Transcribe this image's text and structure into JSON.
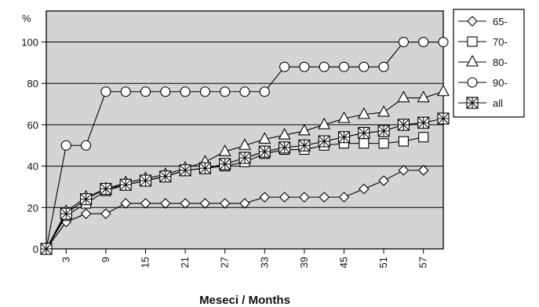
{
  "chart_data": {
    "type": "line",
    "xlabel": "Meseci / Months",
    "ylabel": "%",
    "x": [
      0,
      1,
      2,
      3,
      4,
      5,
      6,
      7,
      8,
      9,
      10,
      11,
      12,
      13,
      14,
      15,
      16,
      17,
      18,
      19,
      20,
      21,
      22,
      23,
      24,
      25,
      26,
      27,
      28,
      29,
      30,
      31,
      32,
      33,
      34,
      35,
      36,
      37,
      38,
      39,
      40,
      41,
      42,
      43,
      44,
      45,
      46,
      47,
      48,
      49,
      50,
      51,
      52,
      53,
      54,
      55,
      56,
      57
    ],
    "xticks": [
      3,
      9,
      15,
      21,
      27,
      33,
      39,
      45,
      51,
      57
    ],
    "yticks": [
      0,
      20,
      40,
      60,
      80,
      100
    ],
    "xlim": [
      0,
      57
    ],
    "ylim": [
      0,
      115
    ],
    "grid": "horizontal",
    "legend_position": "right",
    "series": [
      {
        "name": "65-",
        "marker": "diamond",
        "points": [
          [
            0,
            0
          ],
          [
            3,
            13
          ],
          [
            6,
            17
          ],
          [
            9,
            17
          ],
          [
            12,
            22
          ],
          [
            15,
            22
          ],
          [
            18,
            22
          ],
          [
            21,
            22
          ],
          [
            24,
            22
          ],
          [
            27,
            22
          ],
          [
            30,
            22
          ],
          [
            33,
            25
          ],
          [
            36,
            25
          ],
          [
            39,
            25
          ],
          [
            42,
            25
          ],
          [
            45,
            25
          ],
          [
            48,
            29
          ],
          [
            51,
            33
          ],
          [
            54,
            38
          ],
          [
            57,
            38
          ],
          [
            57,
            38
          ]
        ],
        "values_note": ""
      },
      {
        "name": "70-",
        "marker": "square",
        "points": [
          [
            0,
            0
          ],
          [
            3,
            16
          ],
          [
            6,
            22
          ],
          [
            9,
            28
          ],
          [
            12,
            31
          ],
          [
            15,
            33
          ],
          [
            18,
            35
          ],
          [
            21,
            38
          ],
          [
            24,
            39
          ],
          [
            27,
            40
          ],
          [
            30,
            42
          ],
          [
            33,
            46
          ],
          [
            36,
            48
          ],
          [
            39,
            48
          ],
          [
            42,
            50
          ],
          [
            45,
            51
          ],
          [
            48,
            51
          ],
          [
            51,
            51
          ],
          [
            54,
            52
          ],
          [
            57,
            54
          ]
        ]
      },
      {
        "name": "80-",
        "marker": "triangle",
        "points": [
          [
            0,
            0
          ],
          [
            3,
            18
          ],
          [
            6,
            25
          ],
          [
            9,
            29
          ],
          [
            12,
            32
          ],
          [
            15,
            34
          ],
          [
            18,
            36
          ],
          [
            21,
            39
          ],
          [
            24,
            42
          ],
          [
            27,
            47
          ],
          [
            30,
            50
          ],
          [
            33,
            53
          ],
          [
            36,
            55
          ],
          [
            39,
            57
          ],
          [
            42,
            60
          ],
          [
            45,
            63
          ],
          [
            48,
            65
          ],
          [
            51,
            66
          ],
          [
            54,
            73
          ],
          [
            57,
            73
          ],
          [
            60,
            76
          ]
        ]
      },
      {
        "name": "90-",
        "marker": "circle",
        "points": [
          [
            0,
            0
          ],
          [
            3,
            50
          ],
          [
            6,
            50
          ],
          [
            9,
            76
          ],
          [
            12,
            76
          ],
          [
            15,
            76
          ],
          [
            18,
            76
          ],
          [
            21,
            76
          ],
          [
            24,
            76
          ],
          [
            27,
            76
          ],
          [
            30,
            76
          ],
          [
            33,
            76
          ],
          [
            36,
            88
          ],
          [
            39,
            88
          ],
          [
            42,
            88
          ],
          [
            45,
            88
          ],
          [
            48,
            88
          ],
          [
            51,
            88
          ],
          [
            54,
            100
          ],
          [
            57,
            100
          ],
          [
            60,
            100
          ]
        ]
      },
      {
        "name": "all",
        "marker": "boxstar",
        "points": [
          [
            0,
            0
          ],
          [
            3,
            17
          ],
          [
            6,
            24
          ],
          [
            9,
            29
          ],
          [
            12,
            31
          ],
          [
            15,
            33
          ],
          [
            18,
            35
          ],
          [
            21,
            38
          ],
          [
            24,
            39
          ],
          [
            27,
            41
          ],
          [
            30,
            44
          ],
          [
            33,
            47
          ],
          [
            36,
            49
          ],
          [
            39,
            50
          ],
          [
            42,
            52
          ],
          [
            45,
            54
          ],
          [
            48,
            56
          ],
          [
            51,
            57
          ],
          [
            54,
            60
          ],
          [
            57,
            61
          ],
          [
            60,
            63
          ]
        ]
      }
    ]
  }
}
